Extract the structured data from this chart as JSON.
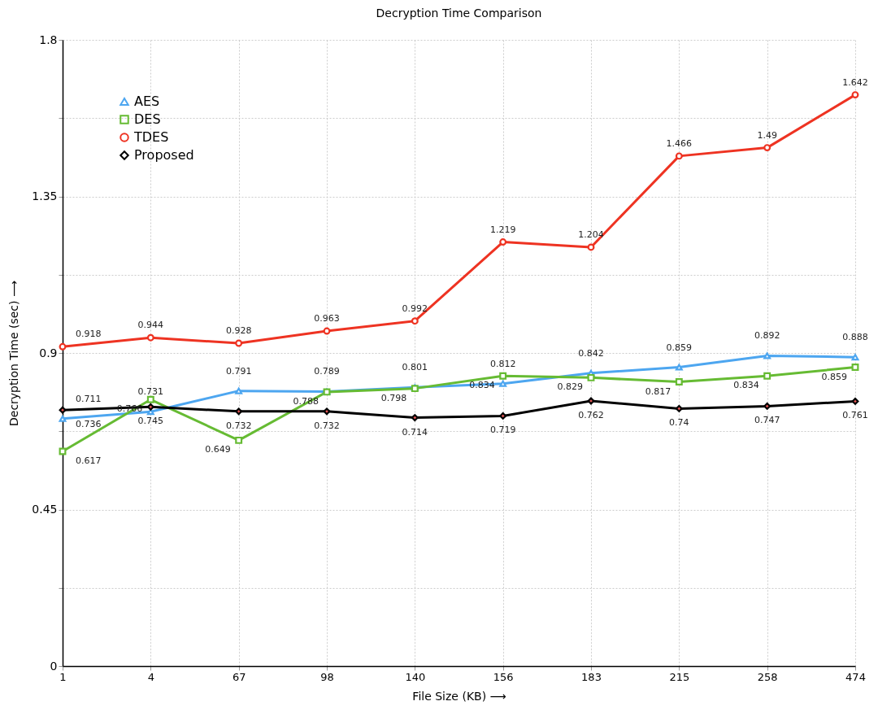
{
  "chart_data": {
    "type": "line",
    "title": "Decryption Time Comparison",
    "xlabel": "File Size (KB) ⟶",
    "ylabel": "Decryption Time (sec) ⟶",
    "categories": [
      "1",
      "4",
      "67",
      "98",
      "140",
      "156",
      "183",
      "215",
      "258",
      "474"
    ],
    "series": [
      {
        "name": "AES",
        "color": "#4da6f0",
        "marker": "triangle",
        "values": [
          0.711,
          0.731,
          0.791,
          0.789,
          0.801,
          0.812,
          0.842,
          0.859,
          0.892,
          0.888
        ]
      },
      {
        "name": "DES",
        "color": "#66bb33",
        "marker": "square",
        "values": [
          0.617,
          0.766,
          0.649,
          0.788,
          0.798,
          0.834,
          0.829,
          0.817,
          0.834,
          0.859
        ]
      },
      {
        "name": "TDES",
        "color": "#ee3322",
        "marker": "circle",
        "values": [
          0.918,
          0.944,
          0.928,
          0.963,
          0.992,
          1.219,
          1.204,
          1.466,
          1.49,
          1.642
        ]
      },
      {
        "name": "Proposed",
        "color": "#000000",
        "marker": "diamond",
        "values": [
          0.736,
          0.745,
          0.732,
          0.732,
          0.714,
          0.719,
          0.762,
          0.74,
          0.747,
          0.761
        ]
      }
    ],
    "ylim": [
      0,
      1.8
    ],
    "yticks": [
      0,
      {
        "value": 0.225,
        "label": null
      },
      0.45,
      {
        "value": 0.675,
        "label": null
      },
      0.9,
      {
        "value": 1.125,
        "label": null
      },
      1.35,
      {
        "value": 1.575,
        "label": null
      },
      1.8
    ],
    "grid": true,
    "legend": "top left",
    "data_labels": true,
    "line_style": "solid"
  }
}
